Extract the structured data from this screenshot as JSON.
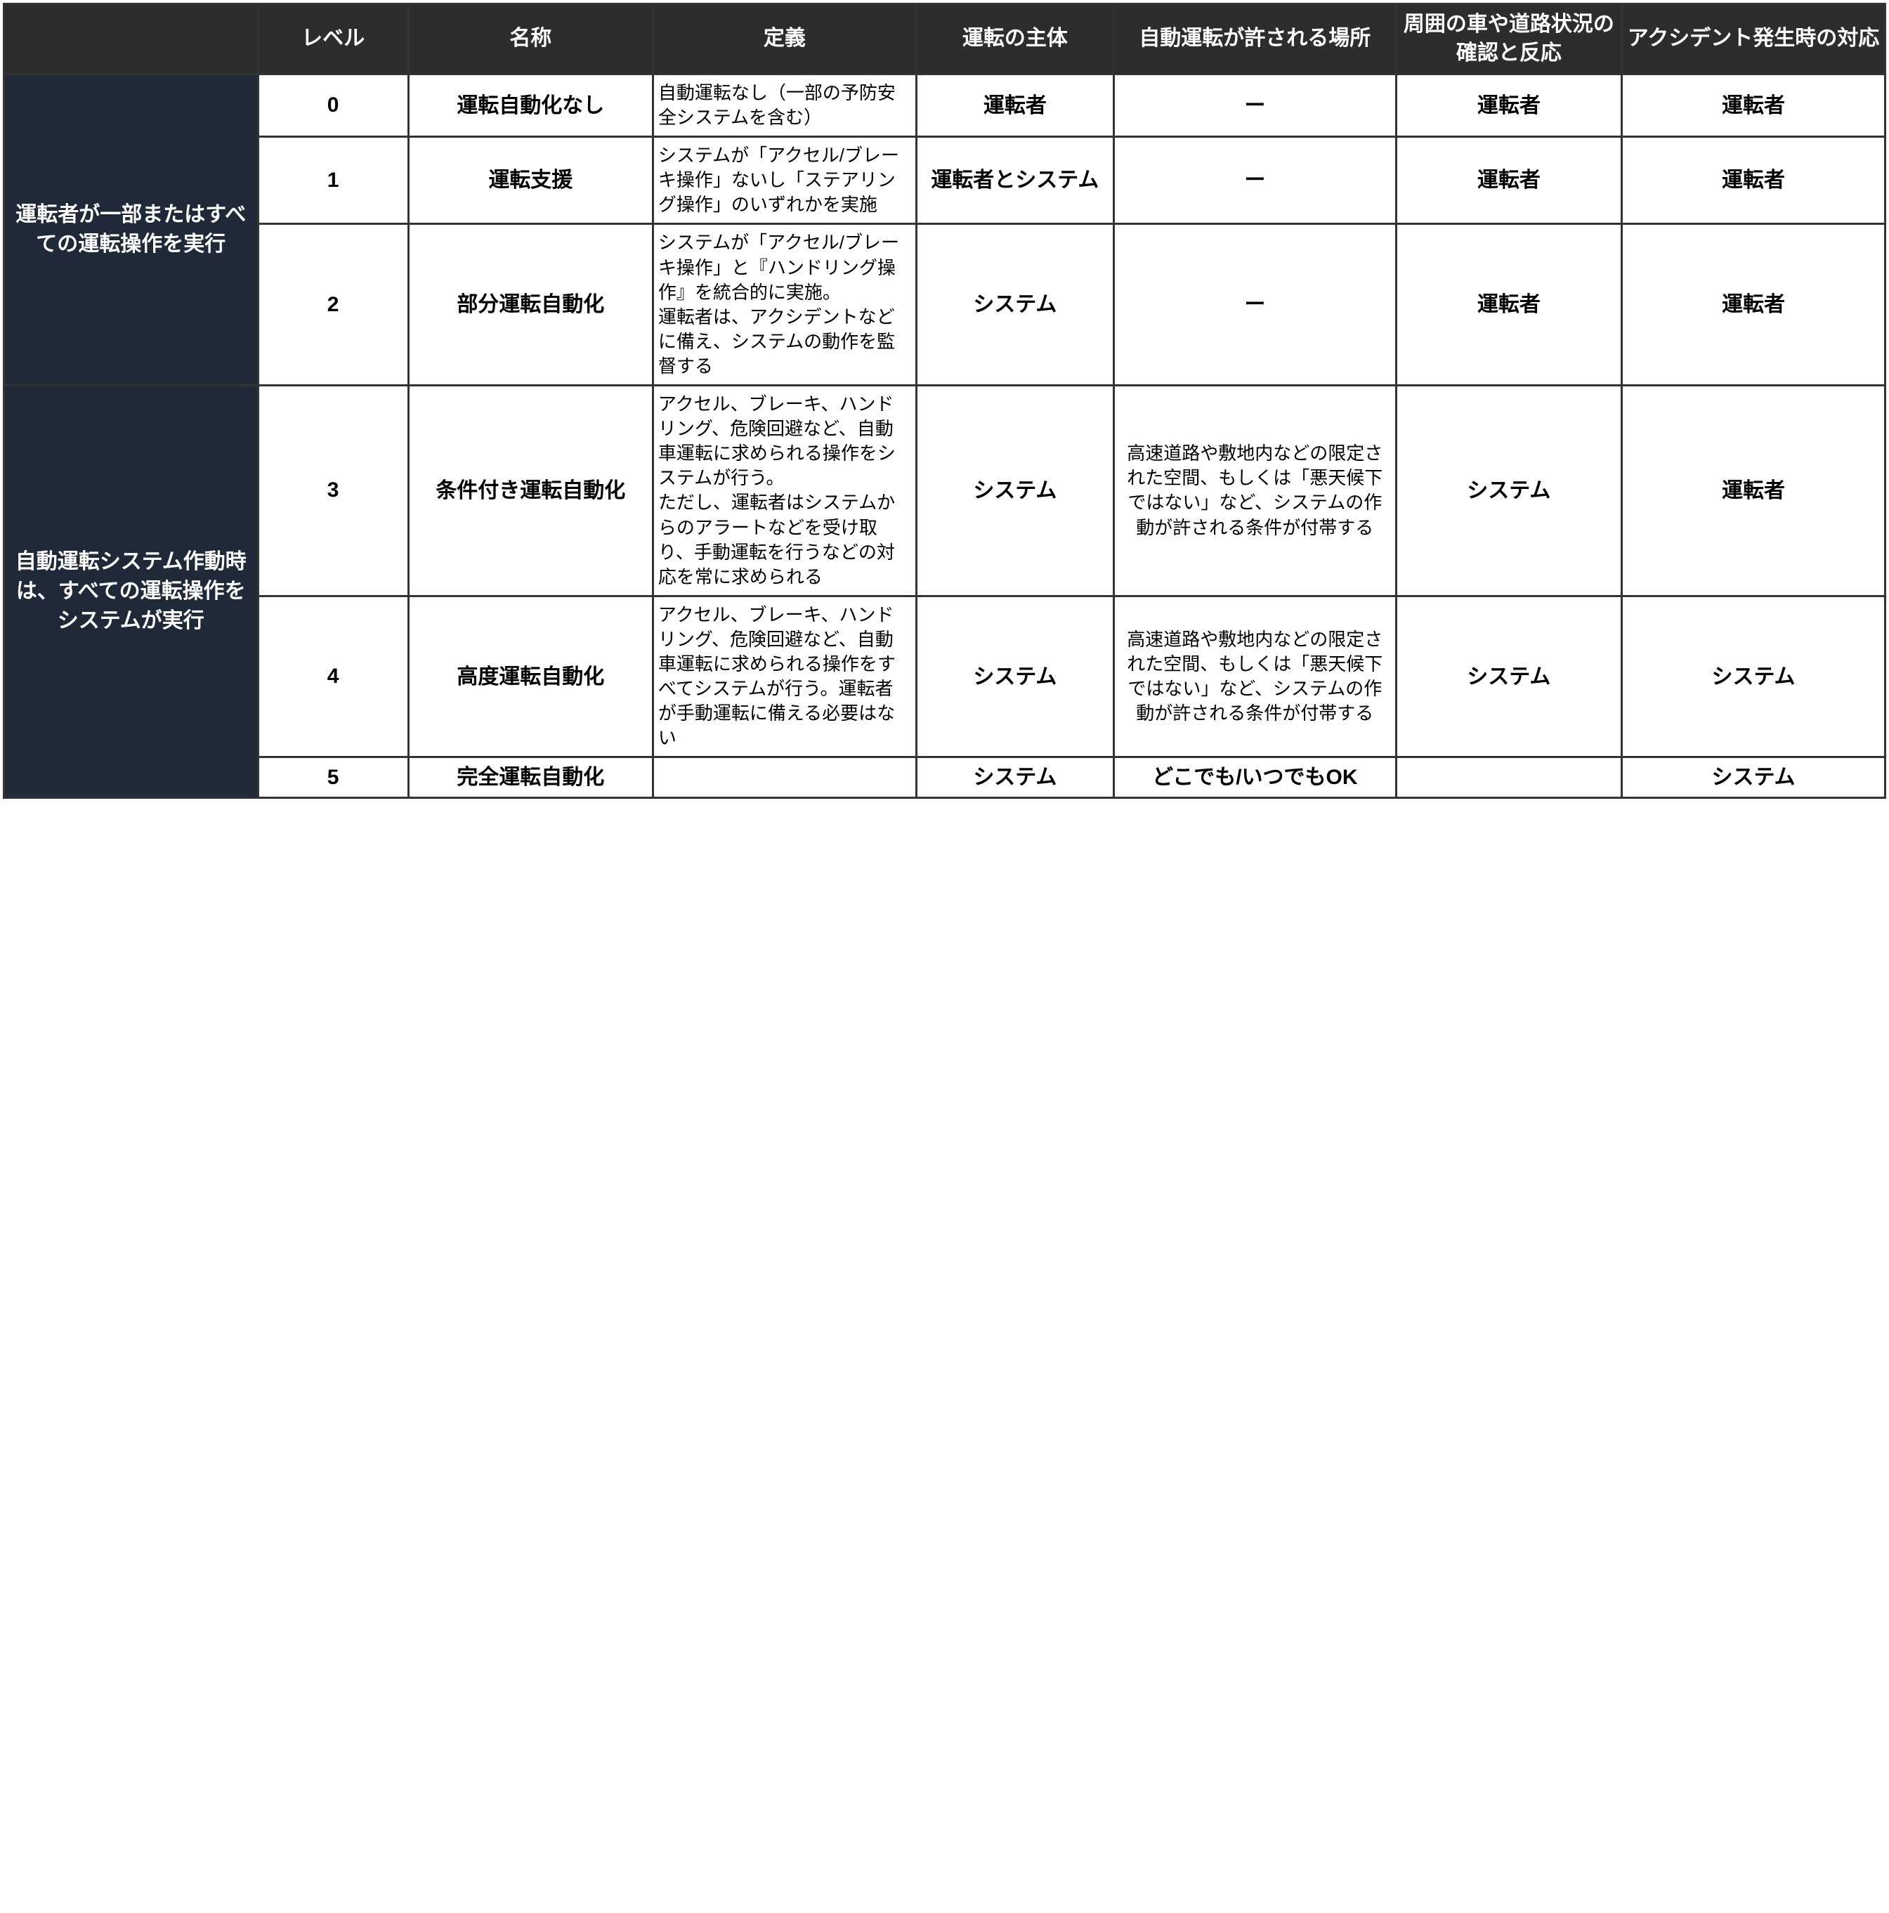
{
  "colors": {
    "header_bg": "#2d2d2d",
    "header_fg": "#ffffff",
    "group_bg": "#1f2937",
    "group_fg": "#ffffff",
    "border": "#333333",
    "body_bg": "#ffffff",
    "text": "#000000"
  },
  "typography": {
    "header_fontsize_pt": 22,
    "body_bold_fontsize_pt": 22,
    "body_fontsize_pt": 19,
    "font_family": "Hiragino Kaku Gothic ProN"
  },
  "columns": [
    {
      "key": "group",
      "label": "",
      "width_pct": 13.5
    },
    {
      "key": "level",
      "label": "レベル",
      "width_pct": 8
    },
    {
      "key": "name",
      "label": "名称",
      "width_pct": 13
    },
    {
      "key": "def",
      "label": "定義",
      "width_pct": 14
    },
    {
      "key": "subject",
      "label": "運転の主体",
      "width_pct": 10.5
    },
    {
      "key": "place",
      "label": "自動運転が許される場所",
      "width_pct": 15
    },
    {
      "key": "monitor",
      "label": "周囲の車や道路状況の確認と反応",
      "width_pct": 12
    },
    {
      "key": "accident",
      "label": "アクシデント発生時の対応",
      "width_pct": 14
    }
  ],
  "groups": [
    {
      "label": "運転者が一部またはすべての運転操作を実行",
      "rowspan": 3
    },
    {
      "label": "自動運転システム作動時は、すべての運転操作をシステムが実行",
      "rowspan": 3
    }
  ],
  "rows": [
    {
      "level": "0",
      "name": "運転自動化なし",
      "def": "自動運転なし（一部の予防安全システムを含む）",
      "subject": "運転者",
      "place": "ー",
      "monitor": "運転者",
      "accident": "運転者"
    },
    {
      "level": "1",
      "name": "運転支援",
      "def": "システムが「アクセル/ブレーキ操作」ないし「ステアリング操作」のいずれかを実施",
      "subject": "運転者とシステム",
      "place": "ー",
      "monitor": "運転者",
      "accident": "運転者"
    },
    {
      "level": "2",
      "name": "部分運転自動化",
      "def": "システムが「アクセル/ブレーキ操作」と『ハンドリング操作』を統合的に実施。\n運転者は、アクシデントなどに備え、システムの動作を監督する",
      "subject": "システム",
      "place": "ー",
      "monitor": "運転者",
      "accident": "運転者"
    },
    {
      "level": "3",
      "name": "条件付き運転自動化",
      "def": "アクセル、ブレーキ、ハンドリング、危険回避など、自動車運転に求められる操作をシステムが行う。\nただし、運転者はシステムからのアラートなどを受け取り、手動運転を行うなどの対応を常に求められる",
      "subject": "システム",
      "place": "高速道路や敷地内などの限定された空間、もしくは「悪天候下ではない」など、システムの作動が許される条件が付帯する",
      "monitor": "システム",
      "accident": "運転者"
    },
    {
      "level": "4",
      "name": "高度運転自動化",
      "def": "アクセル、ブレーキ、ハンドリング、危険回避など、自動車運転に求められる操作をすべてシステムが行う。運転者が手動運転に備える必要はない",
      "subject": "システム",
      "place": "高速道路や敷地内などの限定された空間、もしくは「悪天候下ではない」など、システムの作動が許される条件が付帯する",
      "monitor": "システム",
      "accident": "システム"
    },
    {
      "level": "5",
      "name": "完全運転自動化",
      "def": "",
      "subject": "システム",
      "place": "どこでも/いつでもOK",
      "monitor": "",
      "accident": "システム"
    }
  ]
}
